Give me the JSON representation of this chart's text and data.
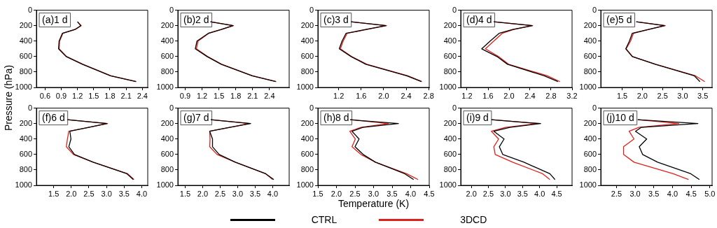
{
  "chart_data": [
    {
      "type": "line",
      "title": "(a)1 d",
      "ylabel": "Pressure (hPa)",
      "legend": "bottom",
      "xlim": [
        0.44,
        2.5
      ],
      "xticks": [
        0.6,
        0.9,
        1.2,
        1.5,
        1.8,
        2.1,
        2.4
      ],
      "ylim": [
        1000,
        0
      ],
      "yticks": [
        0,
        200,
        400,
        600,
        800,
        1000
      ],
      "series": [
        {
          "name": "CTRL",
          "color": "#000000",
          "x": [
            1.2,
            1.26,
            1.15,
            0.92,
            0.86,
            0.85,
            0.99,
            1.29,
            1.81,
            2.28
          ],
          "values": [
            150,
            200,
            250,
            300,
            400,
            500,
            600,
            700,
            850,
            925
          ]
        },
        {
          "name": "3DCD",
          "color": "#e0201b",
          "x": [
            1.2,
            1.27,
            1.16,
            0.93,
            0.87,
            0.86,
            1.0,
            1.3,
            1.82,
            2.29
          ],
          "values": [
            150,
            200,
            250,
            300,
            400,
            500,
            600,
            700,
            850,
            925
          ]
        }
      ]
    },
    {
      "type": "line",
      "title": "(b)2 d",
      "xlim": [
        0.77,
        2.75
      ],
      "xticks": [
        0.9,
        1.2,
        1.5,
        1.8,
        2.1,
        2.4
      ],
      "ylim": [
        1000,
        0
      ],
      "yticks": [
        0,
        200,
        400,
        600,
        800,
        1000
      ],
      "series": [
        {
          "color": "#000000",
          "x": [
            1.35,
            1.75,
            1.54,
            1.31,
            1.11,
            1.08,
            1.29,
            1.54,
            2.09,
            2.51
          ],
          "values": [
            150,
            200,
            250,
            300,
            400,
            500,
            600,
            700,
            850,
            925
          ]
        },
        {
          "color": "#e0201b",
          "x": [
            1.35,
            1.76,
            1.55,
            1.32,
            1.13,
            1.1,
            1.3,
            1.55,
            2.1,
            2.52
          ],
          "values": [
            150,
            200,
            250,
            300,
            400,
            500,
            600,
            700,
            850,
            925
          ]
        }
      ]
    },
    {
      "type": "line",
      "title": "(c)3 d",
      "xlim": [
        0.83,
        2.81
      ],
      "xticks": [
        1.2,
        1.6,
        {
          "value": 2,
          "label": "2.0"
        },
        2.4,
        2.8
      ],
      "ylim": [
        1000,
        0
      ],
      "yticks": [
        0,
        200,
        400,
        600,
        800,
        1000
      ],
      "series": [
        {
          "color": "#000000",
          "x": [
            1.42,
            2.04,
            1.68,
            1.33,
            1.26,
            1.21,
            1.42,
            1.68,
            2.41,
            2.67
          ],
          "values": [
            150,
            200,
            250,
            300,
            400,
            500,
            600,
            700,
            850,
            925
          ]
        },
        {
          "color": "#e0201b",
          "x": [
            1.42,
            2.05,
            1.7,
            1.35,
            1.28,
            1.23,
            1.43,
            1.7,
            2.43,
            2.68
          ],
          "values": [
            150,
            200,
            250,
            300,
            400,
            500,
            600,
            700,
            850,
            925
          ]
        }
      ]
    },
    {
      "type": "line",
      "title": "(d)4 d",
      "xlim": [
        1.08,
        3.2
      ],
      "xticks": [
        1.2,
        1.6,
        {
          "value": 2,
          "label": "2.0"
        },
        2.4,
        2.8,
        3.2
      ],
      "ylim": [
        1000,
        0
      ],
      "yticks": [
        0,
        200,
        400,
        600,
        800,
        1000
      ],
      "series": [
        {
          "color": "#000000",
          "x": [
            1.71,
            2.44,
            2.07,
            1.81,
            1.64,
            1.48,
            1.77,
            1.97,
            2.67,
            2.93
          ],
          "values": [
            150,
            200,
            250,
            300,
            400,
            500,
            600,
            700,
            850,
            925
          ]
        },
        {
          "color": "#e0201b",
          "x": [
            1.71,
            2.45,
            2.09,
            1.87,
            1.71,
            1.55,
            1.8,
            1.99,
            2.73,
            2.97
          ],
          "values": [
            150,
            200,
            250,
            300,
            400,
            500,
            600,
            700,
            850,
            925
          ]
        }
      ]
    },
    {
      "type": "line",
      "title": "(e)5 d",
      "xlim": [
        0.97,
        3.73
      ],
      "xticks": [
        1.5,
        {
          "value": 2,
          "label": "2.0"
        },
        2.5,
        {
          "value": 3,
          "label": "3.0"
        },
        3.5
      ],
      "ylim": [
        1000,
        0
      ],
      "yticks": [
        0,
        200,
        400,
        600,
        800,
        1000
      ],
      "series": [
        {
          "color": "#000000",
          "x": [
            1.85,
            2.55,
            2.15,
            1.75,
            1.68,
            1.59,
            1.75,
            2.32,
            3.29,
            3.43
          ],
          "values": [
            150,
            200,
            250,
            300,
            400,
            500,
            600,
            700,
            850,
            925
          ]
        },
        {
          "color": "#e0201b",
          "x": [
            1.85,
            2.57,
            2.16,
            1.78,
            1.71,
            1.6,
            1.76,
            2.33,
            3.32,
            3.55
          ],
          "values": [
            150,
            200,
            250,
            300,
            400,
            500,
            600,
            700,
            850,
            925
          ]
        }
      ]
    },
    {
      "type": "line",
      "title": "(f)6 d",
      "xlim": [
        1.01,
        4.17
      ],
      "xticks": [
        1.5,
        {
          "value": 2,
          "label": "2.0"
        },
        2.5,
        {
          "value": 3,
          "label": "3.0"
        },
        3.5,
        {
          "value": 4,
          "label": "4.0"
        }
      ],
      "ylim": [
        1000,
        0
      ],
      "yticks": [
        0,
        200,
        400,
        600,
        800,
        1000
      ],
      "series": [
        {
          "color": "#000000",
          "x": [
            1.89,
            3.01,
            2.49,
            1.96,
            1.99,
            1.93,
            2.09,
            2.62,
            3.58,
            3.76
          ],
          "values": [
            150,
            200,
            250,
            300,
            400,
            500,
            600,
            700,
            850,
            925
          ]
        },
        {
          "color": "#e0201b",
          "x": [
            1.89,
            3.03,
            2.5,
            1.93,
            1.89,
            1.86,
            2.06,
            2.62,
            3.6,
            3.78
          ],
          "values": [
            150,
            200,
            250,
            300,
            400,
            500,
            600,
            700,
            850,
            925
          ]
        }
      ]
    },
    {
      "type": "line",
      "title": "(g)7 d",
      "xlim": [
        1.29,
        4.47
      ],
      "xticks": [
        1.5,
        {
          "value": 2,
          "label": "2.0"
        },
        2.5,
        {
          "value": 3,
          "label": "3.0"
        },
        3.5,
        {
          "value": 4,
          "label": "4.0"
        }
      ],
      "ylim": [
        1000,
        0
      ],
      "yticks": [
        0,
        200,
        400,
        600,
        800,
        1000
      ],
      "series": [
        {
          "color": "#000000",
          "x": [
            2.23,
            3.37,
            2.77,
            2.2,
            2.28,
            2.28,
            2.47,
            2.93,
            3.8,
            4.03
          ],
          "values": [
            150,
            200,
            250,
            300,
            400,
            500,
            600,
            700,
            850,
            925
          ]
        },
        {
          "color": "#e0201b",
          "x": [
            2.23,
            3.33,
            2.77,
            2.2,
            2.21,
            2.2,
            2.41,
            2.93,
            3.8,
            4.0
          ],
          "values": [
            150,
            200,
            250,
            300,
            400,
            500,
            600,
            700,
            850,
            925
          ]
        }
      ]
    },
    {
      "type": "line",
      "title": "(h)8 d",
      "xlabel": "Temperature (K)",
      "xlim": [
        1.5,
        4.5
      ],
      "xticks": [
        1.5,
        {
          "value": 2,
          "label": "2.0"
        },
        2.5,
        {
          "value": 3,
          "label": "3.0"
        },
        3.5,
        {
          "value": 4,
          "label": "4.0"
        },
        4.5
      ],
      "ylim": [
        1000,
        0
      ],
      "yticks": [
        0,
        200,
        400,
        600,
        800,
        1000
      ],
      "series": [
        {
          "color": "#000000",
          "x": [
            2.37,
            3.67,
            2.71,
            2.42,
            2.61,
            2.5,
            2.72,
            3.05,
            3.84,
            4.08
          ],
          "values": [
            150,
            200,
            250,
            300,
            400,
            500,
            600,
            700,
            850,
            925
          ]
        },
        {
          "color": "#e0201b",
          "x": [
            2.37,
            3.4,
            2.66,
            2.36,
            2.51,
            2.42,
            2.66,
            3.05,
            3.89,
            4.2
          ],
          "values": [
            150,
            200,
            250,
            300,
            400,
            500,
            600,
            700,
            850,
            925
          ]
        }
      ]
    },
    {
      "type": "line",
      "title": "(i)9 d",
      "xlim": [
        1.69,
        4.95
      ],
      "xticks": [
        {
          "value": 2,
          "label": "2.0"
        },
        2.5,
        {
          "value": 3,
          "label": "3.0"
        },
        3.5,
        {
          "value": 4,
          "label": "4.0"
        },
        4.5
      ],
      "ylim": [
        1000,
        0
      ],
      "yticks": [
        0,
        200,
        400,
        600,
        800,
        1000
      ],
      "series": [
        {
          "color": "#000000",
          "x": [
            2.59,
            4.03,
            3.13,
            2.66,
            2.96,
            2.82,
            2.92,
            3.54,
            4.3,
            4.45
          ],
          "values": [
            150,
            200,
            250,
            300,
            400,
            500,
            600,
            700,
            850,
            925
          ]
        },
        {
          "color": "#e0201b",
          "x": [
            2.59,
            3.93,
            3.0,
            2.59,
            2.8,
            2.66,
            2.7,
            3.21,
            4.09,
            4.3
          ],
          "values": [
            150,
            200,
            250,
            300,
            400,
            500,
            600,
            700,
            850,
            925
          ]
        }
      ]
    },
    {
      "type": "line",
      "title": "(j)10 d",
      "xlim": [
        2.08,
        5.06
      ],
      "xticks": [
        2.5,
        {
          "value": 3,
          "label": "3.0"
        },
        3.5,
        {
          "value": 4,
          "label": "4.0"
        },
        4.5,
        {
          "value": 5,
          "label": "5.0"
        }
      ],
      "ylim": [
        1000,
        0
      ],
      "yticks": [
        0,
        200,
        400,
        600,
        800,
        1000
      ],
      "series": [
        {
          "color": "#000000",
          "x": [
            3.07,
            4.68,
            3.16,
            3.01,
            3.31,
            3.11,
            3.2,
            3.6,
            4.49,
            4.72
          ],
          "values": [
            150,
            200,
            250,
            300,
            400,
            500,
            600,
            700,
            850,
            925
          ]
        },
        {
          "color": "#e0201b",
          "x": [
            3.07,
            4.17,
            3.1,
            2.84,
            2.97,
            2.69,
            2.69,
            2.97,
            4.02,
            4.43
          ],
          "values": [
            150,
            200,
            250,
            300,
            400,
            500,
            600,
            700,
            850,
            925
          ]
        }
      ]
    }
  ]
}
